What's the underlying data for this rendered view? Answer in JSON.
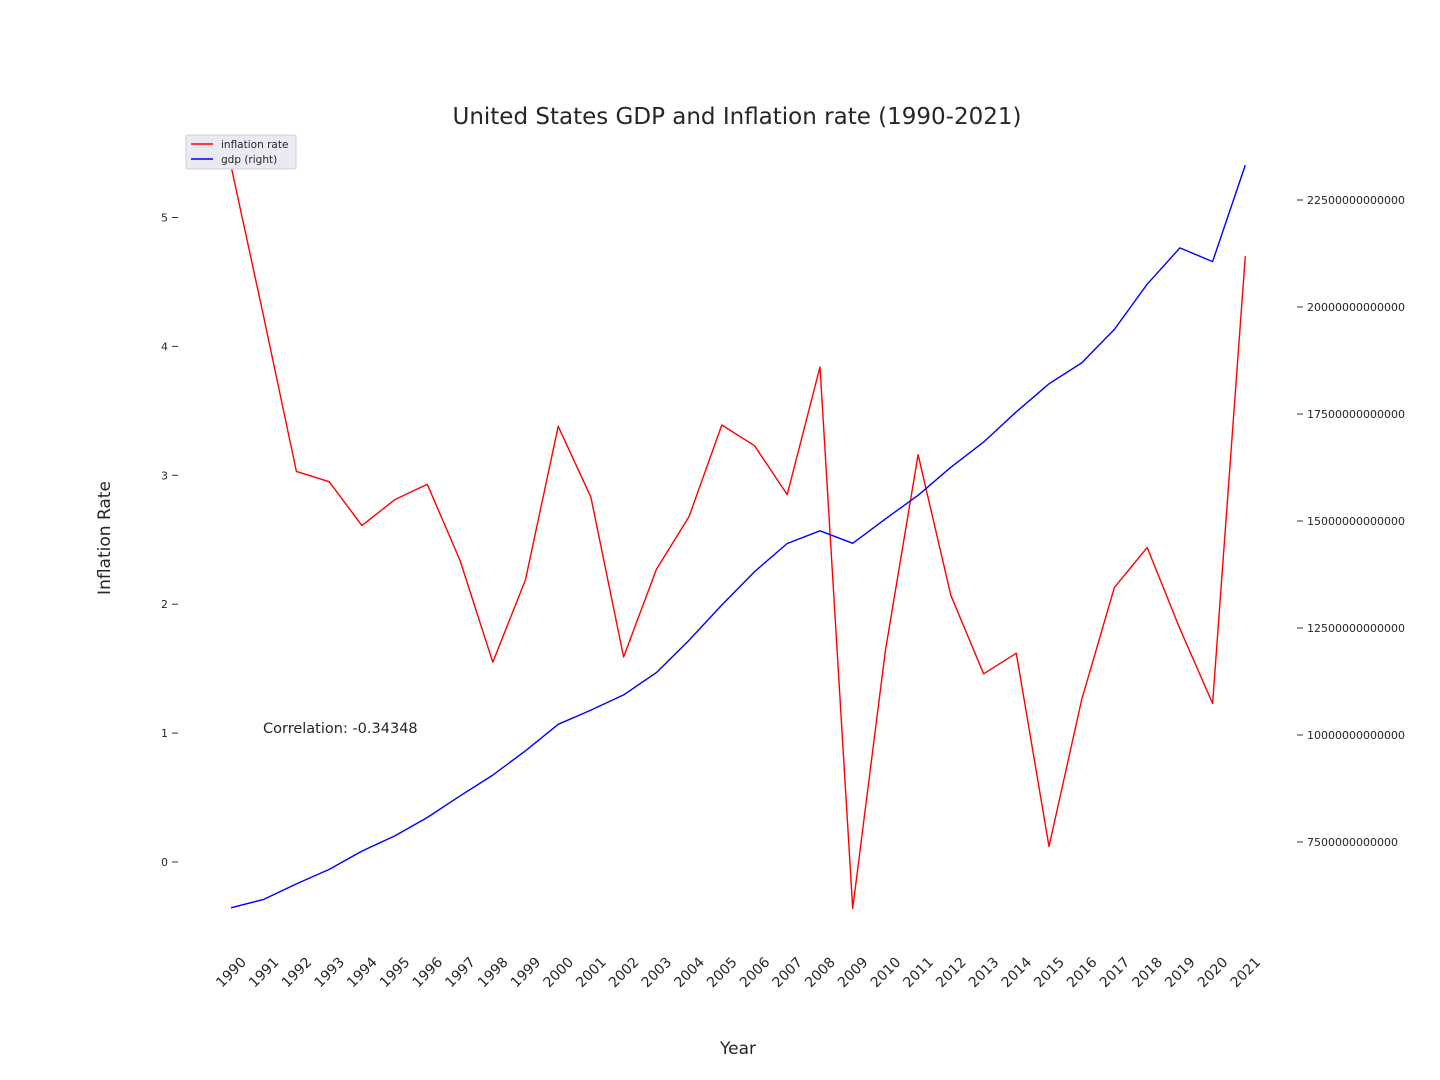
{
  "chart_data": {
    "type": "line",
    "title": "United States GDP and Inflation rate (1990-2021)",
    "xlabel": "Year",
    "ylabel": "Inflation Rate",
    "y2label": "",
    "x": [
      "1990",
      "1991",
      "1992",
      "1993",
      "1994",
      "1995",
      "1996",
      "1997",
      "1998",
      "1999",
      "2000",
      "2001",
      "2002",
      "2003",
      "2004",
      "2005",
      "2006",
      "2007",
      "2008",
      "2009",
      "2010",
      "2011",
      "2012",
      "2013",
      "2014",
      "2015",
      "2016",
      "2017",
      "2018",
      "2019",
      "2020",
      "2021"
    ],
    "series": [
      {
        "name": "inflation rate",
        "axis": "left",
        "color": "#ff0000",
        "values": [
          5.4,
          4.23,
          3.03,
          2.95,
          2.61,
          2.81,
          2.93,
          2.34,
          1.55,
          2.19,
          3.38,
          2.83,
          1.59,
          2.27,
          2.68,
          3.39,
          3.23,
          2.85,
          3.84,
          -0.36,
          1.64,
          3.16,
          2.07,
          1.46,
          1.62,
          0.12,
          1.26,
          2.13,
          2.44,
          1.81,
          1.23,
          4.7
        ]
      },
      {
        "name": "gdp (right)",
        "axis": "right",
        "color": "#0000ff",
        "values": [
          5963000000000,
          6158000000000,
          6520000000000,
          6859000000000,
          7287000000000,
          7640000000000,
          8073000000000,
          8578000000000,
          9063000000000,
          9631000000000,
          10251000000000,
          10582000000000,
          10936000000000,
          11458000000000,
          12214000000000,
          13037000000000,
          13815000000000,
          14475000000000,
          14770000000000,
          14478000000000,
          15049000000000,
          15600000000000,
          16254000000000,
          16843000000000,
          17551000000000,
          18206000000000,
          18695000000000,
          19477000000000,
          20533000000000,
          21381000000000,
          21060000000000,
          23315000000000
        ]
      }
    ],
    "y_ticks": [
      0,
      1,
      2,
      3,
      4,
      5
    ],
    "y2_ticks": [
      7500000000000,
      10000000000000,
      12500000000000,
      15000000000000,
      17500000000000,
      20000000000000,
      22500000000000
    ],
    "y2_tick_labels": [
      "7500000000000",
      "10000000000000",
      "12500000000000",
      "15000000000000",
      "17500000000000",
      "20000000000000",
      "22500000000000"
    ],
    "annotation": "Correlation: -0.34348",
    "legend_position": "top-left",
    "grid": false
  }
}
